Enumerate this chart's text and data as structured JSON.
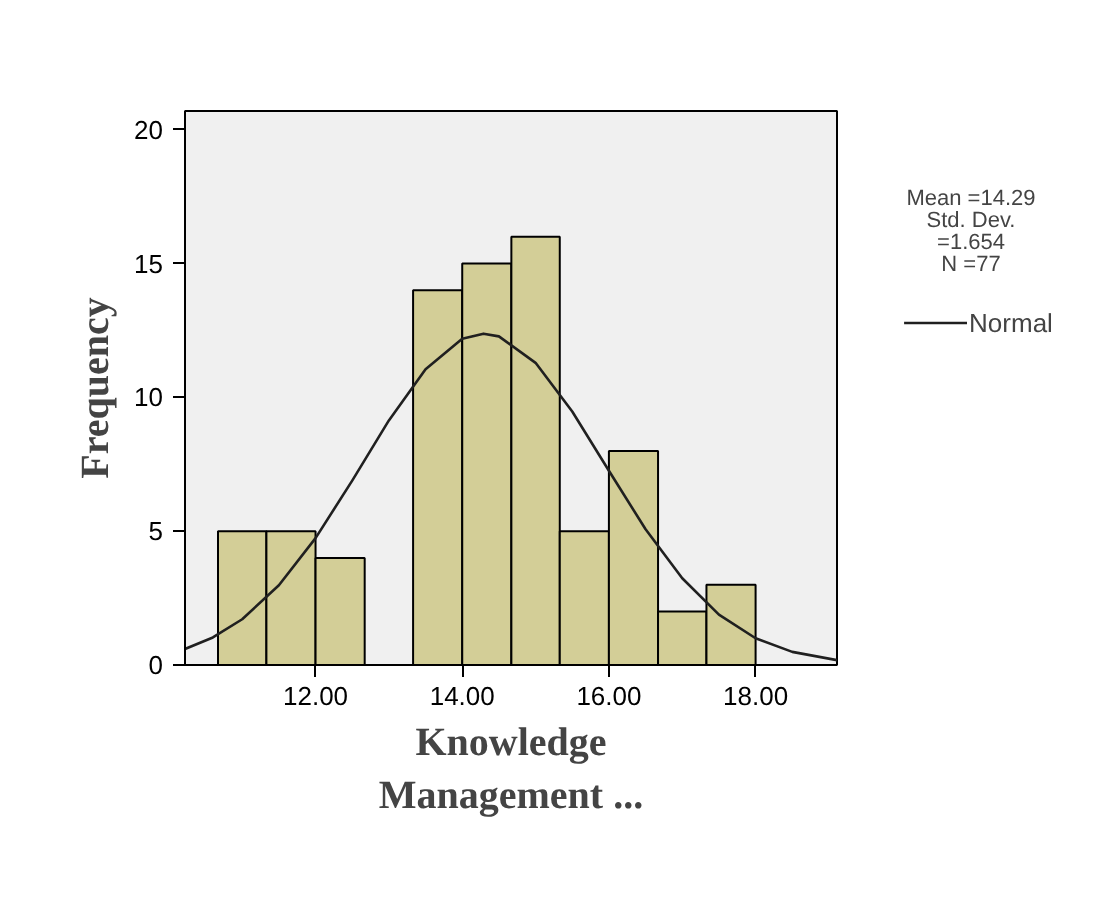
{
  "chart_data": {
    "type": "histogram",
    "xlabel": "Knowledge Management ...",
    "ylabel": "Frequency",
    "bins": [
      10.67,
      11.33,
      12,
      12.67,
      13.33,
      14,
      14.67,
      15.33,
      16,
      16.67,
      17.33,
      18
    ],
    "values": [
      5,
      5,
      4,
      0,
      14,
      15,
      16,
      5,
      8,
      2,
      3
    ],
    "color": "#d3ce97",
    "series": [
      {
        "name": "Normal",
        "type": "line",
        "color": "#202020",
        "x": [
          10.22,
          10.6,
          11,
          11.5,
          12,
          12.5,
          13,
          13.5,
          14,
          14.29,
          14.5,
          15,
          15.5,
          16,
          16.5,
          17,
          17.5,
          18,
          18.5,
          19.11
        ],
        "values": [
          0.6,
          1.03,
          1.71,
          2.98,
          4.74,
          6.89,
          9.14,
          11.05,
          12.19,
          12.38,
          12.28,
          11.29,
          9.47,
          7.26,
          5.07,
          3.24,
          1.88,
          1.0,
          0.49,
          0.18
        ]
      }
    ],
    "xlim": [
      10.22,
      19.11
    ],
    "ylim": [
      0,
      20.7
    ],
    "xticks": [
      {
        "value": 12,
        "label": "12.00"
      },
      {
        "value": 14,
        "label": "14.00"
      },
      {
        "value": 16,
        "label": "16.00"
      },
      {
        "value": 18,
        "label": "18.00"
      }
    ],
    "yticks": [
      0,
      5,
      10,
      15,
      20
    ],
    "grid": false,
    "legend": "top right",
    "annotations": [
      "Mean =14.29",
      "Std. Dev.\n=1.654",
      "N =77"
    ]
  }
}
